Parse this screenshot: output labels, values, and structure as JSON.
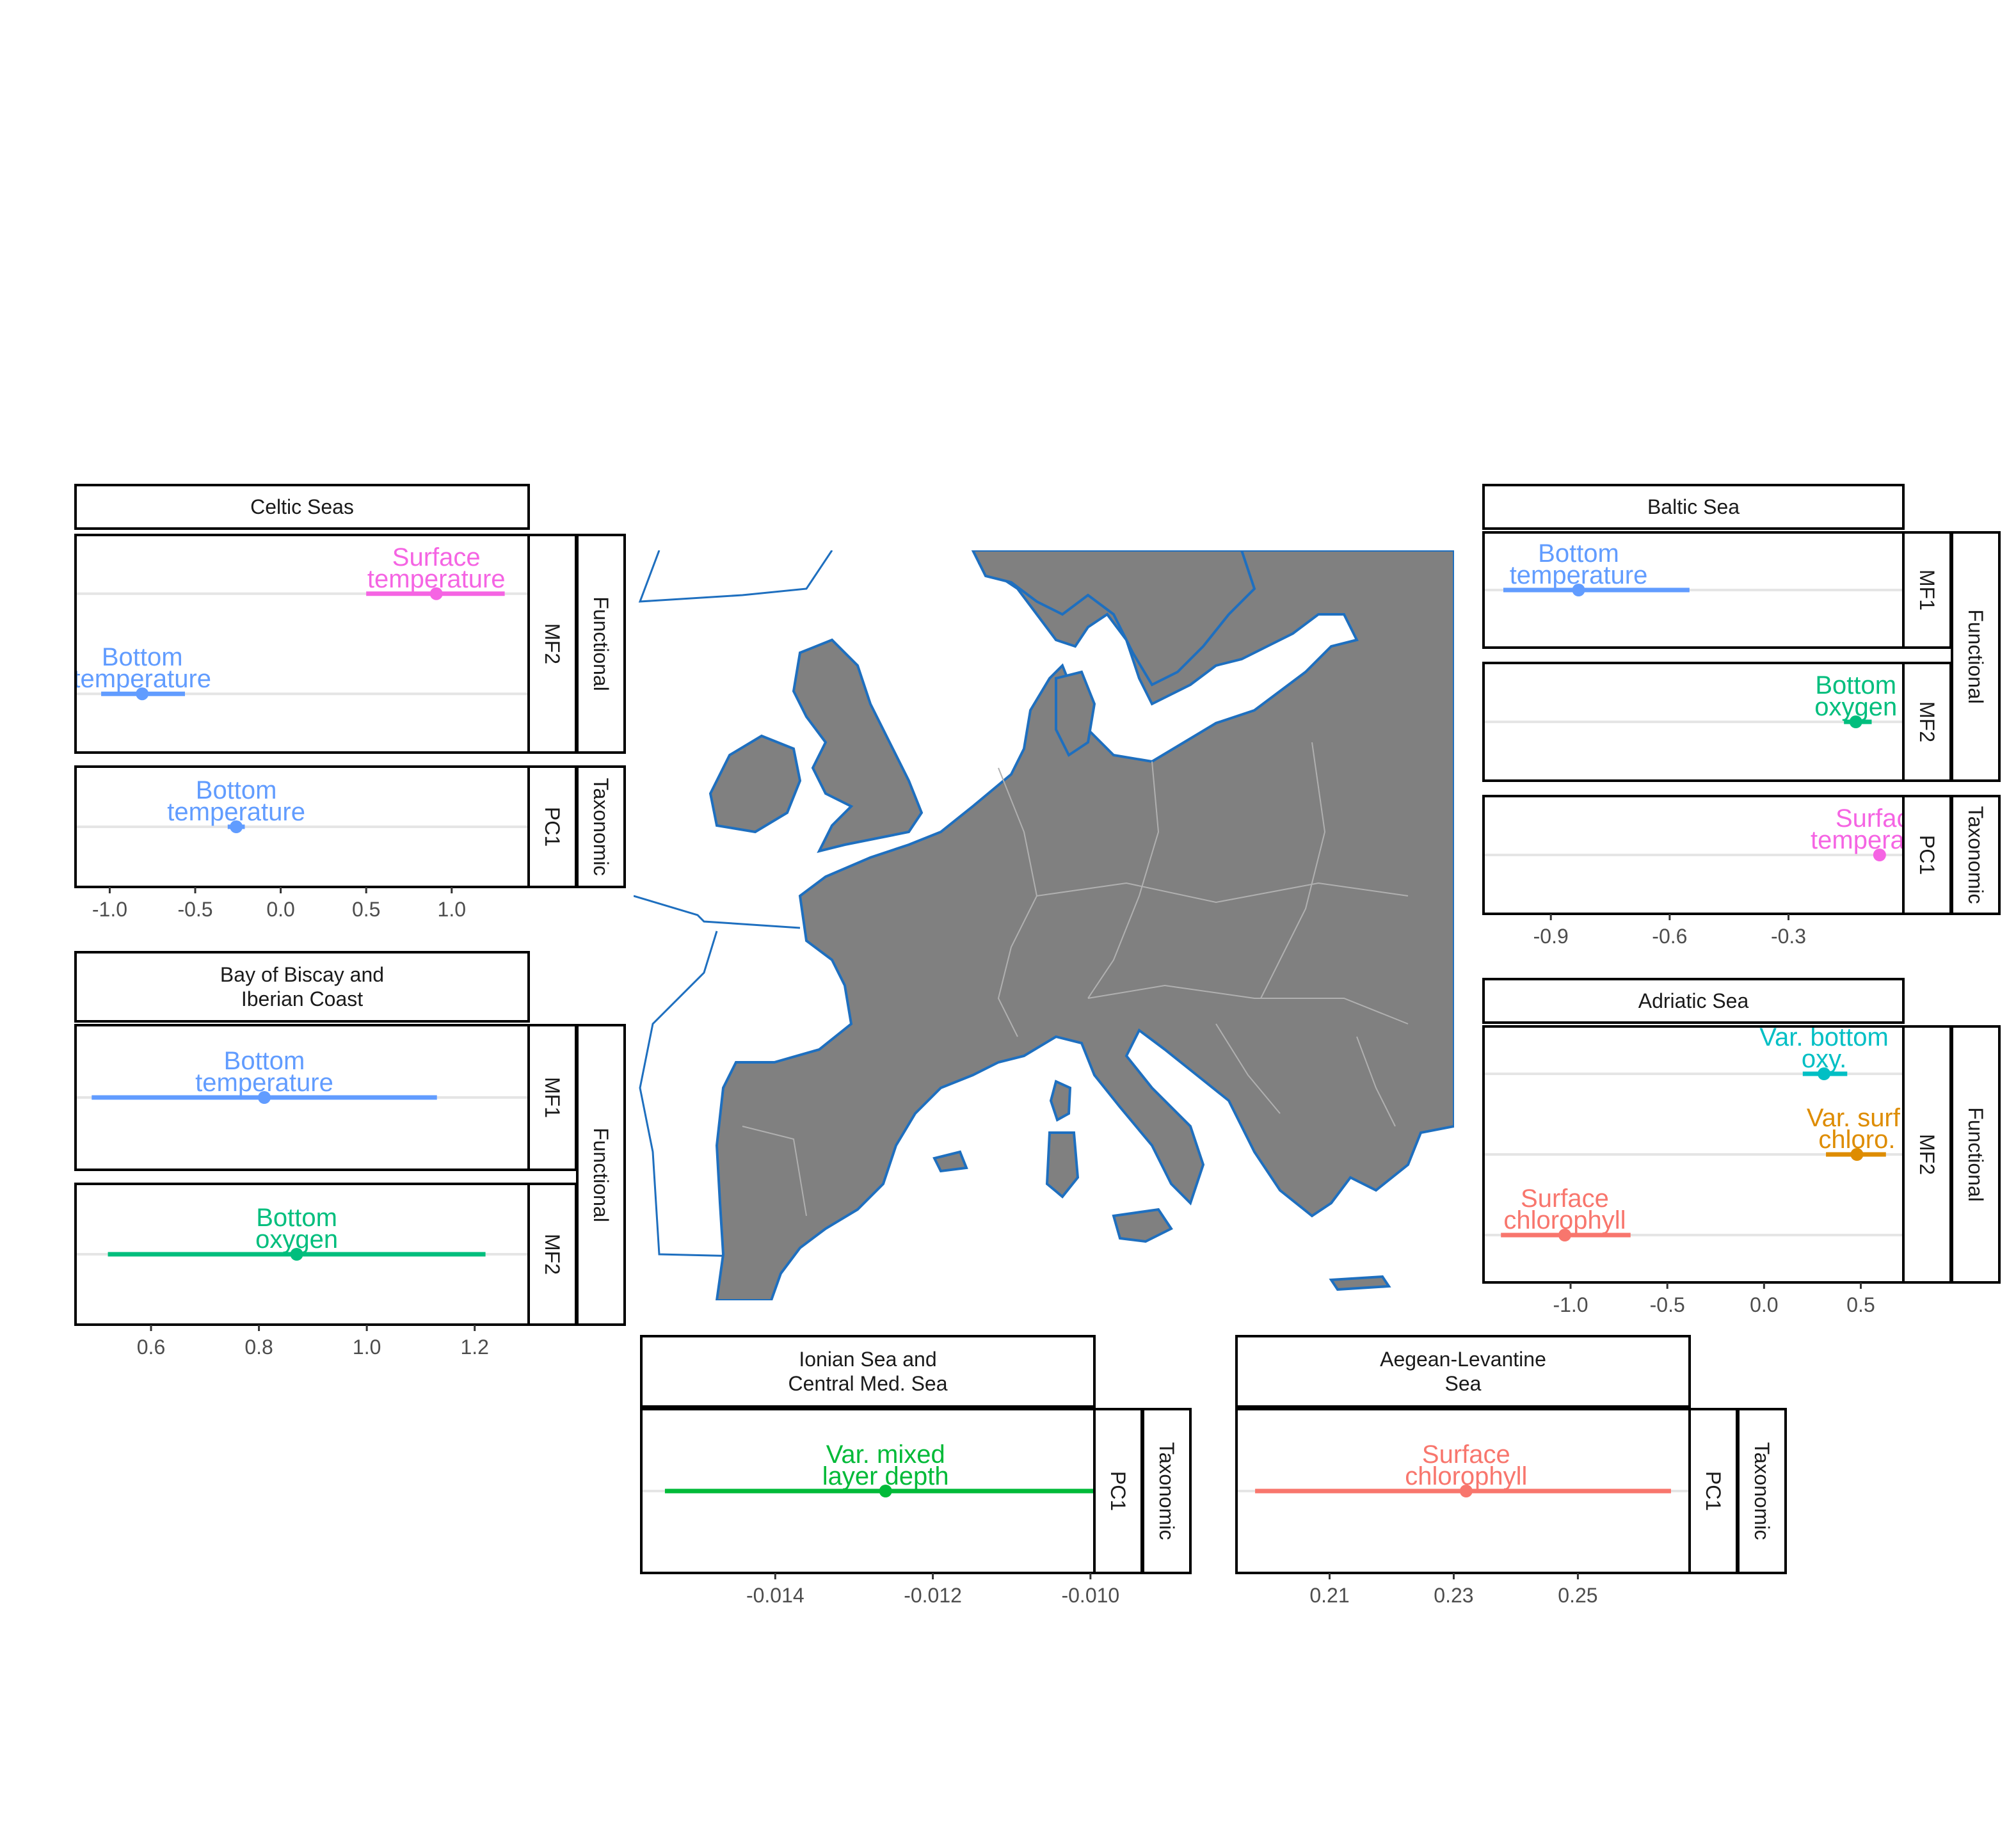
{
  "colors": {
    "bottom_temperature": "#619CFF",
    "surface_temperature": "#F564E3",
    "bottom_oxygen": "#00BE7D",
    "surface_chlorophyll": "#F8766D",
    "var_bottom_oxy": "#00BFC4",
    "var_surface_chloro": "#DE8C00",
    "var_mixed_layer_depth": "#00BA38",
    "coast": "#1E6FBF",
    "land": "#808080",
    "panel_border": "#000000",
    "gridline": "#E5E5E5",
    "tick_text": "#4D4D4D"
  },
  "map": {
    "coast_icon": "europe-coastline-map"
  },
  "chart_data": [
    {
      "type": "forest",
      "title": "Celtic Seas",
      "xlim": [
        -1.2,
        1.45
      ],
      "x_ticks": [
        -1.0,
        -0.5,
        0.0,
        0.5,
        1.0
      ],
      "x_tick_labels": [
        "-1.0",
        "-0.5",
        "0.0",
        "0.5",
        "1.0"
      ],
      "groups": [
        {
          "label": "Functional",
          "rows": [
            {
              "label": "MF2",
              "points": [
                {
                  "label": [
                    "Surface",
                    "temperature"
                  ],
                  "x": 0.91,
                  "lo": 0.5,
                  "hi": 1.31,
                  "color": "#F564E3"
                },
                {
                  "label": [
                    "Bottom",
                    "temperature"
                  ],
                  "x": -0.81,
                  "lo": -1.05,
                  "hi": -0.56,
                  "color": "#619CFF"
                }
              ]
            }
          ]
        },
        {
          "label": "Taxonomic",
          "rows": [
            {
              "label": "PC1",
              "points": [
                {
                  "label": [
                    "Bottom",
                    "temperature"
                  ],
                  "x": -0.26,
                  "lo": -0.31,
                  "hi": -0.21,
                  "color": "#619CFF"
                }
              ]
            }
          ]
        }
      ]
    },
    {
      "type": "forest",
      "title": "Bay of Biscay and\nIberian Coast",
      "xlim": [
        0.46,
        1.3
      ],
      "x_ticks": [
        0.6,
        0.8,
        1.0,
        1.2
      ],
      "x_tick_labels": [
        "0.6",
        "0.8",
        "1.0",
        "1.2"
      ],
      "groups": [
        {
          "label": "Functional",
          "rows": [
            {
              "label": "MF1",
              "points": [
                {
                  "label": [
                    "Bottom",
                    "temperature"
                  ],
                  "x": 0.81,
                  "lo": 0.49,
                  "hi": 1.13,
                  "color": "#619CFF"
                }
              ]
            },
            {
              "label": "MF2",
              "points": [
                {
                  "label": [
                    "Bottom",
                    "oxygen"
                  ],
                  "x": 0.87,
                  "lo": 0.52,
                  "hi": 1.22,
                  "color": "#00BE7D"
                }
              ]
            }
          ]
        }
      ]
    },
    {
      "type": "forest",
      "title": "Baltic Sea",
      "xlim": [
        -1.07,
        -0.01
      ],
      "x_ticks": [
        -0.9,
        -0.6,
        -0.3
      ],
      "x_tick_labels": [
        "-0.9",
        "-0.6",
        "-0.3"
      ],
      "groups": [
        {
          "label": "Functional",
          "rows": [
            {
              "label": "MF1",
              "points": [
                {
                  "label": [
                    "Bottom",
                    "temperature"
                  ],
                  "x": -0.83,
                  "lo": -1.02,
                  "hi": -0.55,
                  "color": "#619CFF"
                }
              ]
            },
            {
              "label": "MF2",
              "points": [
                {
                  "label": [
                    "Bottom",
                    "oxygen"
                  ],
                  "x": -0.13,
                  "lo": -0.16,
                  "hi": -0.09,
                  "color": "#00BE7D"
                }
              ]
            }
          ]
        },
        {
          "label": "Taxonomic",
          "rows": [
            {
              "label": "PC1",
              "points": [
                {
                  "label": [
                    "Surface",
                    "temperature"
                  ],
                  "x": -0.07,
                  "lo": -0.07,
                  "hi": -0.07,
                  "color": "#F564E3"
                }
              ]
            }
          ]
        }
      ]
    },
    {
      "type": "forest",
      "title": "Adriatic Sea",
      "xlim": [
        -1.45,
        0.72
      ],
      "x_ticks": [
        -1.0,
        -0.5,
        0.0,
        0.5
      ],
      "x_tick_labels": [
        "-1.0",
        "-0.5",
        "0.0",
        "0.5"
      ],
      "groups": [
        {
          "label": "Functional",
          "rows": [
            {
              "label": "MF2",
              "points": [
                {
                  "label": [
                    "Var. bottom",
                    "oxy."
                  ],
                  "x": 0.31,
                  "lo": 0.2,
                  "hi": 0.43,
                  "color": "#00BFC4"
                },
                {
                  "label": [
                    "Var. surf.",
                    "chloro."
                  ],
                  "x": 0.48,
                  "lo": 0.32,
                  "hi": 0.63,
                  "color": "#DE8C00"
                },
                {
                  "label": [
                    "Surface",
                    "chlorophyll"
                  ],
                  "x": -1.03,
                  "lo": -1.36,
                  "hi": -0.69,
                  "color": "#F8766D"
                }
              ]
            }
          ]
        }
      ]
    },
    {
      "type": "forest",
      "title": "Ionian Sea and\nCentral Med. Sea",
      "xlim": [
        -0.0157,
        -0.00995
      ],
      "x_ticks": [
        -0.014,
        -0.012,
        -0.01
      ],
      "x_tick_labels": [
        "-0.014",
        "-0.012",
        "-0.010"
      ],
      "groups": [
        {
          "label": "Taxonomic",
          "rows": [
            {
              "label": "PC1",
              "points": [
                {
                  "label": [
                    "Var. mixed",
                    "layer depth"
                  ],
                  "x": -0.0126,
                  "lo": -0.0154,
                  "hi": -0.0098,
                  "color": "#00BA38"
                }
              ]
            }
          ]
        }
      ]
    },
    {
      "type": "forest",
      "title": "Aegean-Levantine\nSea",
      "xlim": [
        0.195,
        0.268
      ],
      "x_ticks": [
        0.21,
        0.23,
        0.25
      ],
      "x_tick_labels": [
        "0.21",
        "0.23",
        "0.25"
      ],
      "groups": [
        {
          "label": "Taxonomic",
          "rows": [
            {
              "label": "PC1",
              "points": [
                {
                  "label": [
                    "Surface",
                    "chlorophyll"
                  ],
                  "x": 0.232,
                  "lo": 0.198,
                  "hi": 0.265,
                  "color": "#F8766D"
                }
              ]
            }
          ]
        }
      ]
    }
  ]
}
